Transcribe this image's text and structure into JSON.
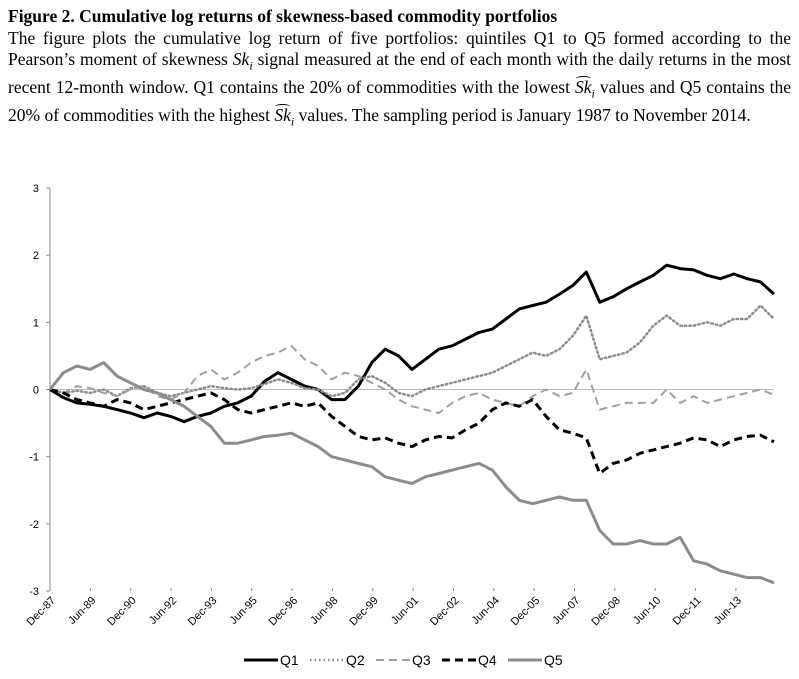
{
  "figure": {
    "title": "Figure 2. Cumulative log returns of skewness-based commodity portfolios",
    "desc_1": "The figure plots the cumulative log return of five portfolios: quintiles Q1 to Q5 formed according to the Pearson’s moment of skewness",
    "desc_2": "signal measured at the end of each month with the daily returns in the most recent 12-month window. Q1 contains the 20% of commodities with the lowest",
    "desc_3": "values and Q5 contains the 20% of commodities with the highest",
    "desc_4": "values. The sampling period is January 1987 to November 2014.",
    "symbol": "Sk",
    "symbol_sub": "i"
  },
  "chart_data": {
    "type": "line",
    "title": "",
    "xlabel": "",
    "ylabel": "",
    "ylim": [
      -3,
      3
    ],
    "yticks": [
      3,
      2,
      1,
      0,
      -1,
      -2,
      -3
    ],
    "x_range": [
      "Dec-87",
      "Nov-14"
    ],
    "xticks": [
      "Dec-87",
      "Jun-89",
      "Dec-90",
      "Jun-92",
      "Dec-93",
      "Jun-95",
      "Dec-96",
      "Jun-98",
      "Dec-99",
      "Jun-01",
      "Dec-02",
      "Jun-04",
      "Dec-05",
      "Jun-07",
      "Dec-08",
      "Jun-10",
      "Dec-11",
      "Jun-13"
    ],
    "grid": false,
    "legend_position": "bottom",
    "x": [
      "Dec-87",
      "Jun-88",
      "Dec-88",
      "Jun-89",
      "Dec-89",
      "Jun-90",
      "Dec-90",
      "Jun-91",
      "Dec-91",
      "Jun-92",
      "Dec-92",
      "Jun-93",
      "Dec-93",
      "Jun-94",
      "Dec-94",
      "Jun-95",
      "Dec-95",
      "Jun-96",
      "Dec-96",
      "Jun-97",
      "Dec-97",
      "Jun-98",
      "Dec-98",
      "Jun-99",
      "Dec-99",
      "Jun-00",
      "Dec-00",
      "Jun-01",
      "Dec-01",
      "Jun-02",
      "Dec-02",
      "Jun-03",
      "Dec-03",
      "Jun-04",
      "Dec-04",
      "Jun-05",
      "Dec-05",
      "Jun-06",
      "Dec-06",
      "Jun-07",
      "Dec-07",
      "Jun-08",
      "Dec-08",
      "Jun-09",
      "Dec-09",
      "Jun-10",
      "Dec-10",
      "Jun-11",
      "Dec-11",
      "Jun-12",
      "Dec-12",
      "Jun-13",
      "Dec-13",
      "Jun-14",
      "Nov-14"
    ],
    "series": [
      {
        "name": "Q1",
        "color": "#000000",
        "dash": "solid",
        "width": 3,
        "values": [
          0,
          -0.12,
          -0.2,
          -0.22,
          -0.25,
          -0.3,
          -0.35,
          -0.42,
          -0.35,
          -0.4,
          -0.48,
          -0.4,
          -0.35,
          -0.25,
          -0.2,
          -0.1,
          0.12,
          0.25,
          0.15,
          0.05,
          0,
          -0.15,
          -0.15,
          0.05,
          0.4,
          0.6,
          0.5,
          0.3,
          0.45,
          0.6,
          0.65,
          0.75,
          0.85,
          0.9,
          1.05,
          1.2,
          1.25,
          1.3,
          1.42,
          1.55,
          1.75,
          1.3,
          1.38,
          1.5,
          1.6,
          1.7,
          1.85,
          1.8,
          1.78,
          1.7,
          1.65,
          1.72,
          1.65,
          1.6,
          1.42
        ]
      },
      {
        "name": "Q2",
        "color": "#8c8c8c",
        "dash": "dotted",
        "width": 2.5,
        "values": [
          0,
          -0.05,
          -0.02,
          -0.05,
          0,
          -0.1,
          0.02,
          0.05,
          -0.05,
          -0.1,
          -0.05,
          0,
          0.05,
          0.02,
          0,
          0.02,
          0.08,
          0.15,
          0.1,
          0.02,
          0,
          -0.1,
          -0.05,
          0.15,
          0.2,
          0.1,
          -0.05,
          -0.1,
          0,
          0.05,
          0.1,
          0.15,
          0.2,
          0.25,
          0.35,
          0.45,
          0.55,
          0.5,
          0.6,
          0.8,
          1.1,
          0.45,
          0.5,
          0.55,
          0.7,
          0.95,
          1.1,
          0.95,
          0.95,
          1.0,
          0.95,
          1.05,
          1.05,
          1.25,
          1.05
        ]
      },
      {
        "name": "Q3",
        "color": "#a0a0a0",
        "dash": "dashed",
        "width": 2,
        "values": [
          0,
          -0.05,
          0.05,
          0.02,
          -0.05,
          -0.1,
          0,
          0.05,
          -0.1,
          -0.15,
          -0.05,
          0.2,
          0.3,
          0.15,
          0.25,
          0.4,
          0.5,
          0.55,
          0.65,
          0.45,
          0.35,
          0.15,
          0.25,
          0.2,
          0.1,
          0,
          -0.15,
          -0.25,
          -0.3,
          -0.35,
          -0.2,
          -0.1,
          -0.05,
          -0.15,
          -0.2,
          -0.25,
          -0.1,
          0.0,
          -0.1,
          -0.05,
          0.3,
          -0.3,
          -0.25,
          -0.2,
          -0.2,
          -0.2,
          0,
          -0.2,
          -0.1,
          -0.2,
          -0.15,
          -0.1,
          -0.05,
          0,
          -0.08
        ]
      },
      {
        "name": "Q4",
        "color": "#000000",
        "dash": "dashed",
        "width": 3,
        "values": [
          0,
          -0.05,
          -0.15,
          -0.2,
          -0.25,
          -0.15,
          -0.2,
          -0.3,
          -0.25,
          -0.2,
          -0.15,
          -0.1,
          -0.05,
          -0.15,
          -0.3,
          -0.35,
          -0.3,
          -0.25,
          -0.2,
          -0.25,
          -0.2,
          -0.4,
          -0.55,
          -0.7,
          -0.75,
          -0.72,
          -0.8,
          -0.85,
          -0.75,
          -0.7,
          -0.72,
          -0.6,
          -0.5,
          -0.3,
          -0.2,
          -0.25,
          -0.15,
          -0.4,
          -0.6,
          -0.65,
          -0.72,
          -1.25,
          -1.1,
          -1.05,
          -0.95,
          -0.9,
          -0.85,
          -0.8,
          -0.72,
          -0.75,
          -0.85,
          -0.75,
          -0.7,
          -0.68,
          -0.78
        ]
      },
      {
        "name": "Q5",
        "color": "#8c8c8c",
        "dash": "solid",
        "width": 3,
        "values": [
          0,
          0.25,
          0.35,
          0.3,
          0.4,
          0.2,
          0.1,
          0.0,
          -0.05,
          -0.15,
          -0.25,
          -0.4,
          -0.55,
          -0.8,
          -0.8,
          -0.75,
          -0.7,
          -0.68,
          -0.65,
          -0.75,
          -0.85,
          -1.0,
          -1.05,
          -1.1,
          -1.15,
          -1.3,
          -1.35,
          -1.4,
          -1.3,
          -1.25,
          -1.2,
          -1.15,
          -1.1,
          -1.2,
          -1.45,
          -1.65,
          -1.7,
          -1.65,
          -1.6,
          -1.65,
          -1.65,
          -2.1,
          -2.3,
          -2.3,
          -2.25,
          -2.3,
          -2.3,
          -2.2,
          -2.55,
          -2.6,
          -2.7,
          -2.75,
          -2.8,
          -2.8,
          -2.88
        ]
      }
    ]
  }
}
